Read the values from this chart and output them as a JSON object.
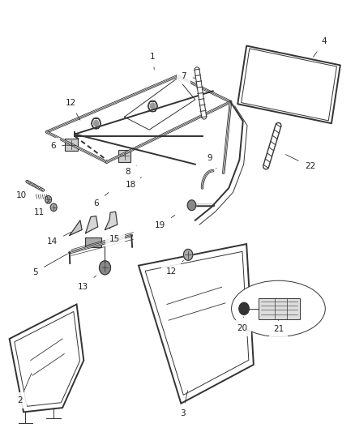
{
  "background_color": "#ffffff",
  "line_color": "#333333",
  "label_color": "#222222",
  "label_fontsize": 7.5,
  "fig_width": 4.38,
  "fig_height": 5.33,
  "dpi": 100
}
